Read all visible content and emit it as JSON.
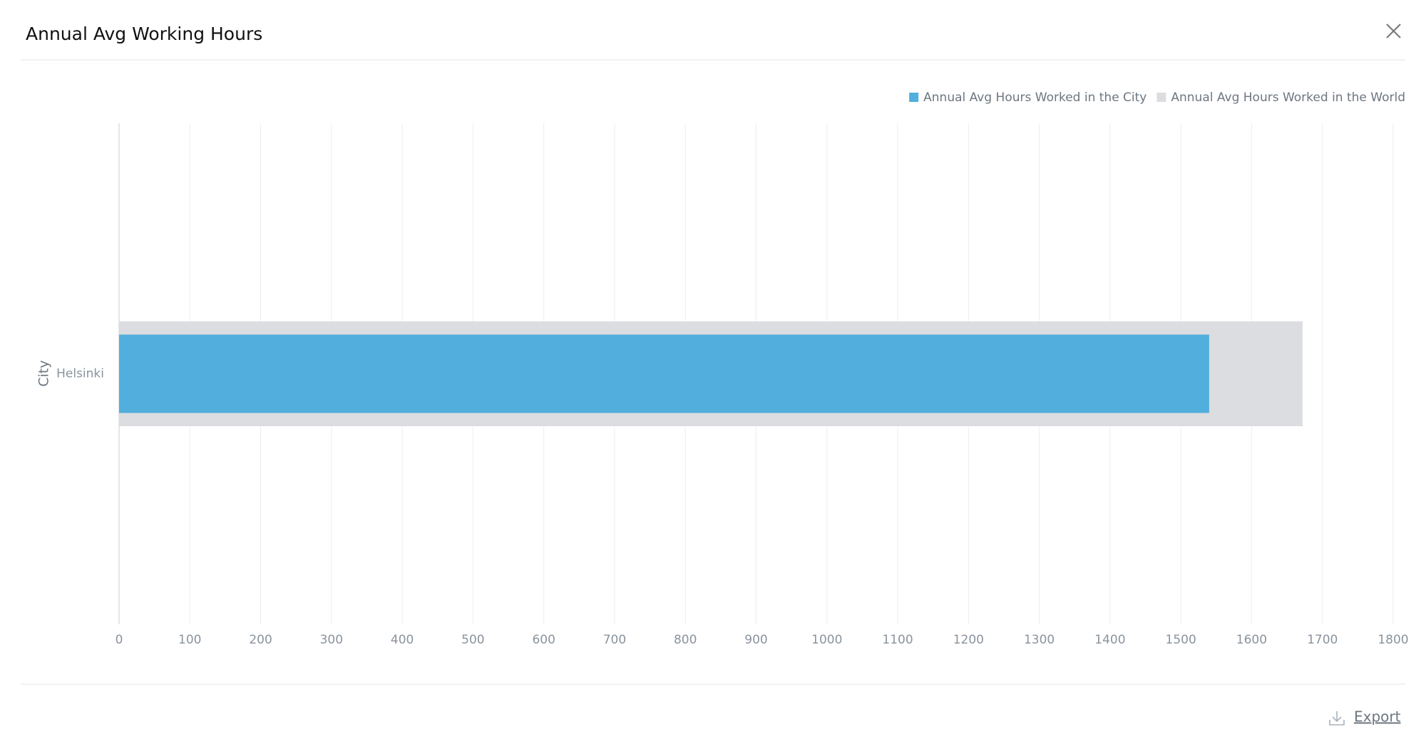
{
  "chart_data": {
    "type": "bar",
    "orientation": "horizontal",
    "title": "Annual Avg Working Hours",
    "y_label": "City",
    "categories": [
      "Helsinki"
    ],
    "series": [
      {
        "name": "Annual Avg Hours Worked in the World",
        "color": "#dcdde0",
        "values": [
          1672
        ]
      },
      {
        "name": "Annual Avg Hours Worked in the City",
        "color": "#52aedc",
        "values": [
          1540
        ]
      }
    ],
    "xlim": [
      0,
      1800
    ],
    "xticks": [
      0,
      100,
      200,
      300,
      400,
      500,
      600,
      700,
      800,
      900,
      1000,
      1100,
      1200,
      1300,
      1400,
      1500,
      1600,
      1700,
      1800
    ],
    "grid": true,
    "legend": "top-right"
  },
  "ui": {
    "export": "Export"
  }
}
